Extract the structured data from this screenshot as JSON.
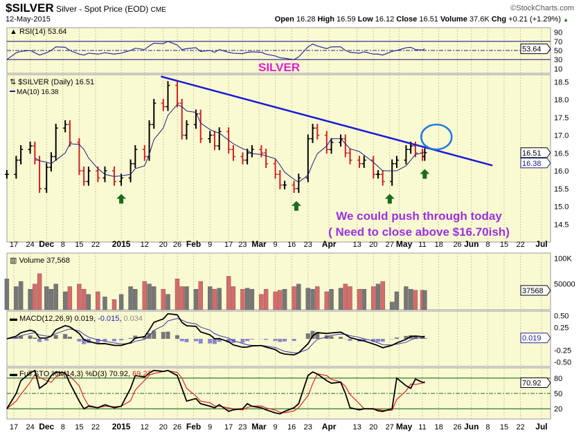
{
  "header": {
    "symbol": "$SILVER",
    "description": "Silver - Spot Price (EOD)",
    "exchange": "CME",
    "date": "12-May-2015",
    "brand": "©StockCharts.com",
    "open_label": "Open",
    "open": "16.28",
    "high_label": "High",
    "high": "16.59",
    "low_label": "Low",
    "low": "16.12",
    "close_label": "Close",
    "close": "16.51",
    "volume_label": "Volume",
    "volume": "37.6K",
    "chg_label": "Chg",
    "chg": "+0.21 (+1.29%)"
  },
  "colors": {
    "background": "#fafad2",
    "up": "#000000",
    "down": "#cc2222",
    "trendline": "#1a1ad6",
    "annotation": "#9b30e0",
    "silver_label": "#e020d0",
    "arrow": "#1d6b1d",
    "vol_up": "#777777",
    "vol_down": "#d96a6a",
    "ma": "#1a1a80",
    "signal": "#3333aa",
    "sto_d": "#dd2222",
    "levels": "#1a6b1a"
  },
  "chart_data": {
    "type": "line",
    "dates": [
      "2014-11-14",
      "2014-11-18",
      "2014-11-20",
      "2014-11-24",
      "2014-11-26",
      "2014-11-28",
      "2014-12-01",
      "2014-12-03",
      "2014-12-05",
      "2014-12-09",
      "2014-12-11",
      "2014-12-15",
      "2014-12-17",
      "2014-12-19",
      "2014-12-23",
      "2014-12-26",
      "2014-12-30",
      "2015-01-02",
      "2015-01-06",
      "2015-01-08",
      "2015-01-12",
      "2015-01-14",
      "2015-01-16",
      "2015-01-20",
      "2015-01-22",
      "2015-01-26",
      "2015-01-28",
      "2015-01-30",
      "2015-02-03",
      "2015-02-05",
      "2015-02-09",
      "2015-02-11",
      "2015-02-13",
      "2015-02-17",
      "2015-02-19",
      "2015-02-23",
      "2015-02-25",
      "2015-02-27",
      "2015-03-03",
      "2015-03-05",
      "2015-03-09",
      "2015-03-11",
      "2015-03-13",
      "2015-03-17",
      "2015-03-19",
      "2015-03-23",
      "2015-03-25",
      "2015-03-27",
      "2015-03-31",
      "2015-04-02",
      "2015-04-06",
      "2015-04-08",
      "2015-04-10",
      "2015-04-14",
      "2015-04-16",
      "2015-04-20",
      "2015-04-22",
      "2015-04-24",
      "2015-04-28",
      "2015-04-30",
      "2015-05-04",
      "2015-05-06",
      "2015-05-08",
      "2015-05-11",
      "2015-05-12"
    ],
    "close": [
      15.9,
      16.3,
      16.6,
      16.7,
      16.3,
      15.5,
      16.1,
      16.4,
      17.2,
      17.3,
      16.8,
      16.0,
      15.7,
      16.0,
      15.8,
      16.0,
      15.7,
      15.8,
      16.2,
      16.6,
      16.4,
      17.3,
      17.9,
      17.8,
      18.4,
      17.9,
      17.0,
      17.3,
      17.6,
      16.9,
      17.0,
      16.7,
      17.1,
      16.6,
      16.4,
      16.3,
      16.5,
      16.6,
      16.5,
      16.2,
      15.9,
      15.6,
      15.6,
      15.5,
      15.8,
      16.9,
      17.2,
      17.0,
      16.6,
      16.8,
      16.9,
      16.5,
      16.3,
      16.2,
      16.3,
      15.9,
      15.9,
      15.7,
      16.2,
      16.3,
      16.6,
      16.7,
      16.5,
      16.4,
      16.51
    ],
    "volume": [
      60000,
      45000,
      55000,
      40000,
      50000,
      70000,
      45000,
      40000,
      50000,
      35000,
      45000,
      50000,
      40000,
      30000,
      35000,
      25000,
      20000,
      30000,
      45000,
      40000,
      55000,
      50000,
      45000,
      40000,
      30000,
      60000,
      45000,
      45000,
      40000,
      55000,
      45000,
      40000,
      42000,
      65000,
      45000,
      40000,
      42000,
      40000,
      30000,
      40000,
      35000,
      38000,
      40000,
      45000,
      50000,
      42000,
      40000,
      45000,
      35000,
      40000,
      42000,
      50000,
      45000,
      40000,
      40000,
      45000,
      50000,
      55000,
      15000,
      35000,
      45000,
      40000,
      38000,
      38000,
      37568
    ],
    "rsi": [
      30,
      45,
      48,
      50,
      45,
      40,
      45,
      50,
      58,
      57,
      50,
      42,
      40,
      44,
      42,
      45,
      42,
      44,
      50,
      55,
      52,
      60,
      66,
      65,
      70,
      62,
      52,
      54,
      56,
      48,
      50,
      46,
      52,
      46,
      44,
      43,
      46,
      47,
      46,
      42,
      38,
      34,
      33,
      30,
      36,
      58,
      64,
      60,
      54,
      58,
      58,
      50,
      46,
      44,
      47,
      42,
      42,
      40,
      48,
      50,
      56,
      57,
      52,
      51,
      53.64
    ],
    "sto_k": [
      20,
      50,
      75,
      90,
      95,
      60,
      70,
      85,
      92,
      90,
      70,
      35,
      20,
      25,
      22,
      28,
      22,
      25,
      60,
      85,
      82,
      90,
      95,
      93,
      95,
      85,
      60,
      35,
      40,
      30,
      25,
      22,
      28,
      15,
      18,
      20,
      30,
      25,
      22,
      18,
      12,
      10,
      15,
      22,
      30,
      85,
      92,
      88,
      75,
      70,
      72,
      50,
      22,
      18,
      20,
      20,
      16,
      15,
      20,
      80,
      65,
      60,
      78,
      72,
      70.92
    ],
    "x_ticks": [
      [
        "2014-11-17",
        "17"
      ],
      [
        "2014-11-24",
        "24"
      ],
      [
        "2014-12-01",
        "Dec"
      ],
      [
        "2014-12-08",
        "8"
      ],
      [
        "2014-12-15",
        "15"
      ],
      [
        "2014-12-22",
        "22"
      ],
      [
        "2015-01-02",
        "2015"
      ],
      [
        "2015-01-12",
        "12"
      ],
      [
        "2015-01-20",
        "20"
      ],
      [
        "2015-01-26",
        "26"
      ],
      [
        "2015-02-02",
        "Feb"
      ],
      [
        "2015-02-09",
        "9"
      ],
      [
        "2015-02-17",
        "17"
      ],
      [
        "2015-02-23",
        "23"
      ],
      [
        "2015-03-02",
        "Mar"
      ],
      [
        "2015-03-09",
        "9"
      ],
      [
        "2015-03-16",
        "16"
      ],
      [
        "2015-03-23",
        "23"
      ],
      [
        "2015-04-01",
        "Apr"
      ],
      [
        "2015-04-13",
        "13"
      ],
      [
        "2015-04-20",
        "20"
      ],
      [
        "2015-04-27",
        "27"
      ],
      [
        "2015-05-01",
        "May"
      ],
      [
        "2015-05-11",
        "11"
      ],
      [
        "2015-05-18",
        "18"
      ],
      [
        "2015-05-26",
        "26"
      ],
      [
        "2015-06-01",
        "Jun"
      ],
      [
        "2015-06-08",
        "8"
      ],
      [
        "2015-06-15",
        "15"
      ],
      [
        "2015-06-22",
        "22"
      ],
      [
        "2015-07-01",
        "Jul"
      ]
    ],
    "panels": {
      "rsi": {
        "label": "RSI(14) 53.64",
        "ylim": [
          0,
          100
        ],
        "ticks": [
          "90",
          "70",
          "50",
          "30",
          "10"
        ],
        "levels": [
          70,
          30
        ],
        "last_tag": "53.64"
      },
      "price": {
        "label": "$SILVER (Daily) 16.51",
        "ma_label": "MA(10) 16.38",
        "ylim": [
          14.0,
          18.7
        ],
        "ticks": [
          "18.5",
          "18.0",
          "17.5",
          "17.0",
          "16.5",
          "16.0",
          "15.5",
          "15.0",
          "14.5"
        ],
        "close_tag": "16.51",
        "ma_tag": "16.38"
      },
      "volume": {
        "label": "Volume 37,568",
        "ylim": [
          0,
          110000
        ],
        "ticks": [
          "100K",
          "50000"
        ],
        "last_tag": "37568"
      },
      "macd": {
        "label_prefix": "MACD(12,26,9) 0.019,",
        "label_signal": "-0.015,",
        "label_hist": "0.034",
        "ylim": [
          -0.6,
          0.6
        ],
        "ticks": [
          "0.50",
          "0.25",
          "-0.25",
          "-0.50"
        ],
        "last_tag": "0.019"
      },
      "sto": {
        "label_prefix": "Full STO %K(14,3) %D(3) 70.92,",
        "label_d": "69.27",
        "ylim": [
          0,
          100
        ],
        "ticks": [
          "80",
          "50",
          "20"
        ],
        "levels": [
          80,
          20
        ],
        "last_tag": "70.92"
      }
    },
    "annotations": {
      "silver_text": "SILVER",
      "line1": "We could push through today",
      "line2": "( Need to close above $16.70ish)",
      "trendline": [
        [
          "2015-01-19",
          18.65
        ],
        [
          "2015-06-10",
          16.15
        ]
      ],
      "circle_center": [
        "2015-05-17",
        16.95
      ],
      "arrows": [
        "2015-01-02",
        "2015-03-18",
        "2015-04-27",
        "2015-05-12"
      ]
    }
  }
}
